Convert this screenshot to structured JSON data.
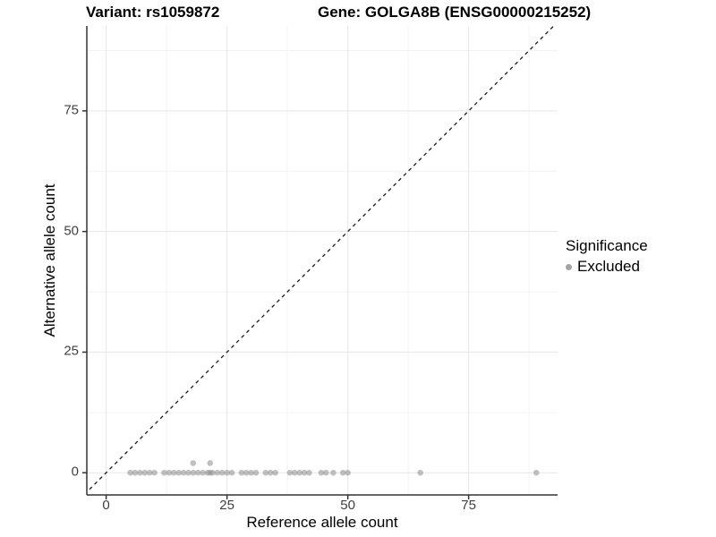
{
  "titles": {
    "variant": "Variant: rs1059872",
    "gene": "Gene: GOLGA8B (ENSG00000215252)"
  },
  "axes": {
    "x_label": "Reference allele count",
    "y_label": "Alternative allele count"
  },
  "legend": {
    "title": "Significance",
    "items": [
      {
        "label": "Excluded",
        "color": "#a3a3a3"
      }
    ]
  },
  "style": {
    "point_color": "#8c8c8c",
    "point_opacity": 0.55,
    "major_grid_color": "#e7e7e7",
    "minor_grid_color": "#f3f3f3",
    "axis_line_color": "#333333",
    "identity_line_color": "#1a1a1a",
    "tick_label_color": "#404040"
  },
  "chart_data": {
    "type": "scatter",
    "title": "Variant: rs1059872 | Gene: GOLGA8B (ENSG00000215252)",
    "xlabel": "Reference allele count",
    "ylabel": "Alternative allele count",
    "xlim": [
      -4.0,
      93.4
    ],
    "ylim": [
      -4.6,
      92.6
    ],
    "x_ticks": [
      0,
      25,
      50,
      75
    ],
    "y_ticks": [
      0,
      25,
      50,
      75
    ],
    "x_minor_ticks": [
      12.5,
      37.5,
      62.5,
      87.5
    ],
    "y_minor_ticks": [
      12.5,
      37.5,
      62.5,
      87.5
    ],
    "grid": true,
    "legend_position": "right",
    "reference_line": {
      "type": "identity_y_equals_x",
      "style": "dashed",
      "color": "#1a1a1a"
    },
    "series": [
      {
        "name": "Excluded",
        "points": [
          [
            5,
            0
          ],
          [
            6,
            0
          ],
          [
            7,
            0
          ],
          [
            8,
            0
          ],
          [
            9,
            0
          ],
          [
            10,
            0
          ],
          [
            12,
            0
          ],
          [
            13,
            0
          ],
          [
            14,
            0
          ],
          [
            15,
            0
          ],
          [
            16,
            0
          ],
          [
            17,
            0
          ],
          [
            18,
            0
          ],
          [
            19,
            0
          ],
          [
            20,
            0
          ],
          [
            21,
            0
          ],
          [
            21.5,
            0
          ],
          [
            22,
            0
          ],
          [
            23,
            0
          ],
          [
            24,
            0
          ],
          [
            25,
            0
          ],
          [
            26,
            0
          ],
          [
            28,
            0
          ],
          [
            29,
            0
          ],
          [
            30,
            0
          ],
          [
            31,
            0
          ],
          [
            33,
            0
          ],
          [
            34,
            0
          ],
          [
            35,
            0
          ],
          [
            38,
            0
          ],
          [
            39,
            0
          ],
          [
            40,
            0
          ],
          [
            41,
            0
          ],
          [
            42,
            0
          ],
          [
            44.5,
            0
          ],
          [
            45.5,
            0
          ],
          [
            47,
            0
          ],
          [
            49,
            0
          ],
          [
            50,
            0
          ],
          [
            65,
            0
          ],
          [
            89,
            0
          ],
          [
            18,
            2
          ],
          [
            21.5,
            2
          ]
        ]
      }
    ]
  }
}
